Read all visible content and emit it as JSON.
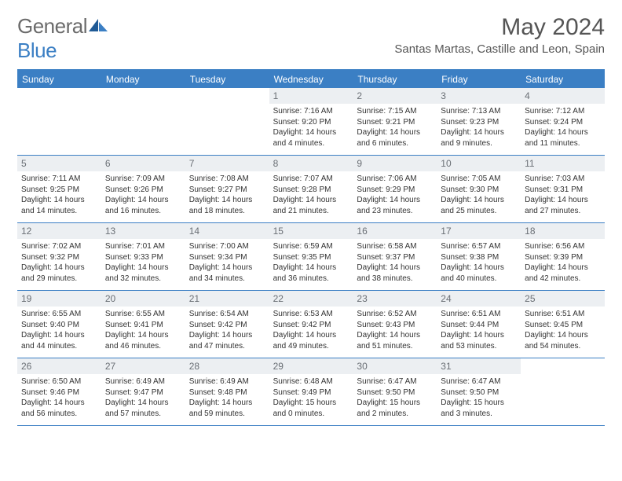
{
  "logo": {
    "text_gray": "General",
    "text_blue": "Blue"
  },
  "title": "May 2024",
  "location": "Santas Martas, Castille and Leon, Spain",
  "colors": {
    "brand_blue": "#3b7fc4",
    "header_text": "#ffffff",
    "daynum_bg": "#eceff2",
    "daynum_text": "#6a6f75",
    "body_text": "#333333",
    "title_text": "#555555",
    "logo_gray": "#6b6b6b",
    "page_bg": "#ffffff"
  },
  "day_names": [
    "Sunday",
    "Monday",
    "Tuesday",
    "Wednesday",
    "Thursday",
    "Friday",
    "Saturday"
  ],
  "weeks": [
    [
      {
        "empty": true
      },
      {
        "empty": true
      },
      {
        "empty": true
      },
      {
        "num": "1",
        "sunrise": "Sunrise: 7:16 AM",
        "sunset": "Sunset: 9:20 PM",
        "day1": "Daylight: 14 hours",
        "day2": "and 4 minutes."
      },
      {
        "num": "2",
        "sunrise": "Sunrise: 7:15 AM",
        "sunset": "Sunset: 9:21 PM",
        "day1": "Daylight: 14 hours",
        "day2": "and 6 minutes."
      },
      {
        "num": "3",
        "sunrise": "Sunrise: 7:13 AM",
        "sunset": "Sunset: 9:23 PM",
        "day1": "Daylight: 14 hours",
        "day2": "and 9 minutes."
      },
      {
        "num": "4",
        "sunrise": "Sunrise: 7:12 AM",
        "sunset": "Sunset: 9:24 PM",
        "day1": "Daylight: 14 hours",
        "day2": "and 11 minutes."
      }
    ],
    [
      {
        "num": "5",
        "sunrise": "Sunrise: 7:11 AM",
        "sunset": "Sunset: 9:25 PM",
        "day1": "Daylight: 14 hours",
        "day2": "and 14 minutes."
      },
      {
        "num": "6",
        "sunrise": "Sunrise: 7:09 AM",
        "sunset": "Sunset: 9:26 PM",
        "day1": "Daylight: 14 hours",
        "day2": "and 16 minutes."
      },
      {
        "num": "7",
        "sunrise": "Sunrise: 7:08 AM",
        "sunset": "Sunset: 9:27 PM",
        "day1": "Daylight: 14 hours",
        "day2": "and 18 minutes."
      },
      {
        "num": "8",
        "sunrise": "Sunrise: 7:07 AM",
        "sunset": "Sunset: 9:28 PM",
        "day1": "Daylight: 14 hours",
        "day2": "and 21 minutes."
      },
      {
        "num": "9",
        "sunrise": "Sunrise: 7:06 AM",
        "sunset": "Sunset: 9:29 PM",
        "day1": "Daylight: 14 hours",
        "day2": "and 23 minutes."
      },
      {
        "num": "10",
        "sunrise": "Sunrise: 7:05 AM",
        "sunset": "Sunset: 9:30 PM",
        "day1": "Daylight: 14 hours",
        "day2": "and 25 minutes."
      },
      {
        "num": "11",
        "sunrise": "Sunrise: 7:03 AM",
        "sunset": "Sunset: 9:31 PM",
        "day1": "Daylight: 14 hours",
        "day2": "and 27 minutes."
      }
    ],
    [
      {
        "num": "12",
        "sunrise": "Sunrise: 7:02 AM",
        "sunset": "Sunset: 9:32 PM",
        "day1": "Daylight: 14 hours",
        "day2": "and 29 minutes."
      },
      {
        "num": "13",
        "sunrise": "Sunrise: 7:01 AM",
        "sunset": "Sunset: 9:33 PM",
        "day1": "Daylight: 14 hours",
        "day2": "and 32 minutes."
      },
      {
        "num": "14",
        "sunrise": "Sunrise: 7:00 AM",
        "sunset": "Sunset: 9:34 PM",
        "day1": "Daylight: 14 hours",
        "day2": "and 34 minutes."
      },
      {
        "num": "15",
        "sunrise": "Sunrise: 6:59 AM",
        "sunset": "Sunset: 9:35 PM",
        "day1": "Daylight: 14 hours",
        "day2": "and 36 minutes."
      },
      {
        "num": "16",
        "sunrise": "Sunrise: 6:58 AM",
        "sunset": "Sunset: 9:37 PM",
        "day1": "Daylight: 14 hours",
        "day2": "and 38 minutes."
      },
      {
        "num": "17",
        "sunrise": "Sunrise: 6:57 AM",
        "sunset": "Sunset: 9:38 PM",
        "day1": "Daylight: 14 hours",
        "day2": "and 40 minutes."
      },
      {
        "num": "18",
        "sunrise": "Sunrise: 6:56 AM",
        "sunset": "Sunset: 9:39 PM",
        "day1": "Daylight: 14 hours",
        "day2": "and 42 minutes."
      }
    ],
    [
      {
        "num": "19",
        "sunrise": "Sunrise: 6:55 AM",
        "sunset": "Sunset: 9:40 PM",
        "day1": "Daylight: 14 hours",
        "day2": "and 44 minutes."
      },
      {
        "num": "20",
        "sunrise": "Sunrise: 6:55 AM",
        "sunset": "Sunset: 9:41 PM",
        "day1": "Daylight: 14 hours",
        "day2": "and 46 minutes."
      },
      {
        "num": "21",
        "sunrise": "Sunrise: 6:54 AM",
        "sunset": "Sunset: 9:42 PM",
        "day1": "Daylight: 14 hours",
        "day2": "and 47 minutes."
      },
      {
        "num": "22",
        "sunrise": "Sunrise: 6:53 AM",
        "sunset": "Sunset: 9:42 PM",
        "day1": "Daylight: 14 hours",
        "day2": "and 49 minutes."
      },
      {
        "num": "23",
        "sunrise": "Sunrise: 6:52 AM",
        "sunset": "Sunset: 9:43 PM",
        "day1": "Daylight: 14 hours",
        "day2": "and 51 minutes."
      },
      {
        "num": "24",
        "sunrise": "Sunrise: 6:51 AM",
        "sunset": "Sunset: 9:44 PM",
        "day1": "Daylight: 14 hours",
        "day2": "and 53 minutes."
      },
      {
        "num": "25",
        "sunrise": "Sunrise: 6:51 AM",
        "sunset": "Sunset: 9:45 PM",
        "day1": "Daylight: 14 hours",
        "day2": "and 54 minutes."
      }
    ],
    [
      {
        "num": "26",
        "sunrise": "Sunrise: 6:50 AM",
        "sunset": "Sunset: 9:46 PM",
        "day1": "Daylight: 14 hours",
        "day2": "and 56 minutes."
      },
      {
        "num": "27",
        "sunrise": "Sunrise: 6:49 AM",
        "sunset": "Sunset: 9:47 PM",
        "day1": "Daylight: 14 hours",
        "day2": "and 57 minutes."
      },
      {
        "num": "28",
        "sunrise": "Sunrise: 6:49 AM",
        "sunset": "Sunset: 9:48 PM",
        "day1": "Daylight: 14 hours",
        "day2": "and 59 minutes."
      },
      {
        "num": "29",
        "sunrise": "Sunrise: 6:48 AM",
        "sunset": "Sunset: 9:49 PM",
        "day1": "Daylight: 15 hours",
        "day2": "and 0 minutes."
      },
      {
        "num": "30",
        "sunrise": "Sunrise: 6:47 AM",
        "sunset": "Sunset: 9:50 PM",
        "day1": "Daylight: 15 hours",
        "day2": "and 2 minutes."
      },
      {
        "num": "31",
        "sunrise": "Sunrise: 6:47 AM",
        "sunset": "Sunset: 9:50 PM",
        "day1": "Daylight: 15 hours",
        "day2": "and 3 minutes."
      },
      {
        "empty": true
      }
    ]
  ]
}
